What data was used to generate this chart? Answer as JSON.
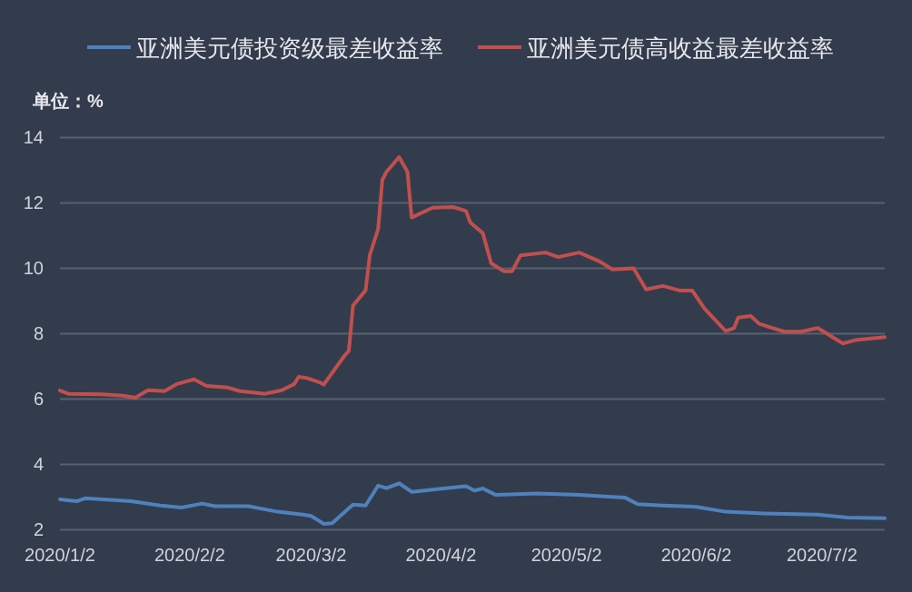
{
  "chart_data": {
    "type": "line",
    "ylabel": "单位：%",
    "legend": "top",
    "grid": "y",
    "xlim": [
      "2020-01-02",
      "2020-07-17"
    ],
    "xticks": [
      {
        "value": "2020-01-02",
        "label": "2020/1/2"
      },
      {
        "value": "2020-02-02",
        "label": "2020/2/2"
      },
      {
        "value": "2020-03-02",
        "label": "2020/3/2"
      },
      {
        "value": "2020-04-02",
        "label": "2020/4/2"
      },
      {
        "value": "2020-05-02",
        "label": "2020/5/2"
      },
      {
        "value": "2020-06-02",
        "label": "2020/6/2"
      },
      {
        "value": "2020-07-02",
        "label": "2020/7/2"
      }
    ],
    "ylim": [
      2,
      14
    ],
    "yticks": [
      2,
      4,
      6,
      8,
      10,
      12,
      14
    ],
    "series": [
      {
        "name": "亚洲美元债投资级最差收益率",
        "color": "#4f81bd",
        "x": [
          "2020-01-02",
          "2020-01-06",
          "2020-01-08",
          "2020-01-19",
          "2020-01-26",
          "2020-01-31",
          "2020-02-05",
          "2020-02-08",
          "2020-02-16",
          "2020-02-23",
          "2020-02-29",
          "2020-03-02",
          "2020-03-05",
          "2020-03-07",
          "2020-03-12",
          "2020-03-15",
          "2020-03-18",
          "2020-03-20",
          "2020-03-23",
          "2020-03-26",
          "2020-04-01",
          "2020-04-08",
          "2020-04-10",
          "2020-04-12",
          "2020-04-15",
          "2020-04-25",
          "2020-05-05",
          "2020-05-11",
          "2020-05-16",
          "2020-05-19",
          "2020-05-25",
          "2020-06-02",
          "2020-06-09",
          "2020-06-18",
          "2020-07-01",
          "2020-07-08",
          "2020-07-17"
        ],
        "values": [
          2.93,
          2.87,
          2.96,
          2.87,
          2.74,
          2.68,
          2.8,
          2.72,
          2.72,
          2.55,
          2.46,
          2.42,
          2.18,
          2.2,
          2.77,
          2.74,
          3.35,
          3.27,
          3.42,
          3.16,
          3.24,
          3.33,
          3.2,
          3.26,
          3.07,
          3.11,
          3.07,
          3.02,
          2.98,
          2.78,
          2.74,
          2.7,
          2.55,
          2.5,
          2.46,
          2.37,
          2.35
        ]
      },
      {
        "name": "亚洲美元债高收益最差收益率",
        "color": "#c0504d",
        "x": [
          "2020-01-02",
          "2020-01-04",
          "2020-01-12",
          "2020-01-17",
          "2020-01-20",
          "2020-01-23",
          "2020-01-27",
          "2020-01-30",
          "2020-02-03",
          "2020-02-06",
          "2020-02-11",
          "2020-02-14",
          "2020-02-20",
          "2020-02-24",
          "2020-02-27",
          "2020-02-28",
          "2020-03-01",
          "2020-03-04",
          "2020-03-05",
          "2020-03-10",
          "2020-03-11",
          "2020-03-12",
          "2020-03-15",
          "2020-03-16",
          "2020-03-18",
          "2020-03-19",
          "2020-03-20",
          "2020-03-23",
          "2020-03-25",
          "2020-03-26",
          "2020-03-31",
          "2020-04-05",
          "2020-04-08",
          "2020-04-09",
          "2020-04-12",
          "2020-04-14",
          "2020-04-17",
          "2020-04-19",
          "2020-04-21",
          "2020-04-27",
          "2020-04-30",
          "2020-05-05",
          "2020-05-10",
          "2020-05-13",
          "2020-05-18",
          "2020-05-21",
          "2020-05-25",
          "2020-05-29",
          "2020-06-01",
          "2020-06-04",
          "2020-06-09",
          "2020-06-11",
          "2020-06-12",
          "2020-06-15",
          "2020-06-17",
          "2020-06-23",
          "2020-06-27",
          "2020-07-01",
          "2020-07-07",
          "2020-07-10",
          "2020-07-17"
        ],
        "values": [
          6.26,
          6.16,
          6.14,
          6.1,
          6.04,
          6.27,
          6.24,
          6.46,
          6.6,
          6.4,
          6.35,
          6.24,
          6.16,
          6.27,
          6.46,
          6.68,
          6.64,
          6.51,
          6.44,
          7.33,
          7.47,
          8.86,
          9.32,
          10.4,
          11.2,
          12.7,
          12.95,
          13.4,
          12.95,
          11.55,
          11.85,
          11.87,
          11.75,
          11.4,
          11.07,
          10.15,
          9.91,
          9.91,
          10.39,
          10.48,
          10.34,
          10.48,
          10.2,
          9.96,
          10,
          9.35,
          9.46,
          9.32,
          9.32,
          8.76,
          8.08,
          8.17,
          8.49,
          8.54,
          8.3,
          8.06,
          8.06,
          8.17,
          7.7,
          7.8,
          7.89
        ]
      }
    ]
  }
}
